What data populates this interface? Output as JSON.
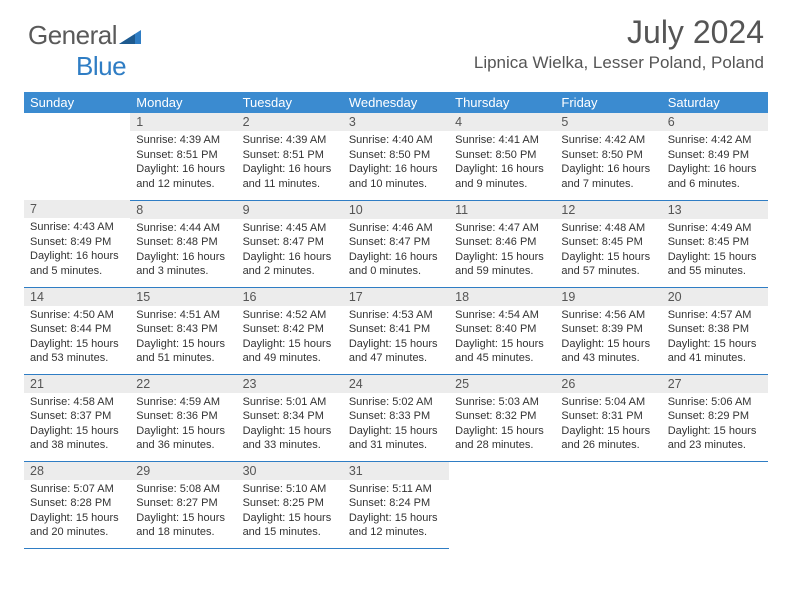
{
  "brand": {
    "word1": "General",
    "word2": "Blue"
  },
  "title": "July 2024",
  "location": "Lipnica Wielka, Lesser Poland, Poland",
  "colors": {
    "header_bg": "#3b8bd0",
    "border": "#2f7dc4",
    "daynum_bg": "#ececec",
    "text_primary": "#555555",
    "text_body": "#333333",
    "background": "#ffffff"
  },
  "weekdays": [
    "Sunday",
    "Monday",
    "Tuesday",
    "Wednesday",
    "Thursday",
    "Friday",
    "Saturday"
  ],
  "weeks": [
    [
      {
        "n": "",
        "lines": [
          "",
          "",
          "",
          ""
        ]
      },
      {
        "n": "1",
        "lines": [
          "Sunrise: 4:39 AM",
          "Sunset: 8:51 PM",
          "Daylight: 16 hours",
          "and 12 minutes."
        ]
      },
      {
        "n": "2",
        "lines": [
          "Sunrise: 4:39 AM",
          "Sunset: 8:51 PM",
          "Daylight: 16 hours",
          "and 11 minutes."
        ]
      },
      {
        "n": "3",
        "lines": [
          "Sunrise: 4:40 AM",
          "Sunset: 8:50 PM",
          "Daylight: 16 hours",
          "and 10 minutes."
        ]
      },
      {
        "n": "4",
        "lines": [
          "Sunrise: 4:41 AM",
          "Sunset: 8:50 PM",
          "Daylight: 16 hours",
          "and 9 minutes."
        ]
      },
      {
        "n": "5",
        "lines": [
          "Sunrise: 4:42 AM",
          "Sunset: 8:50 PM",
          "Daylight: 16 hours",
          "and 7 minutes."
        ]
      },
      {
        "n": "6",
        "lines": [
          "Sunrise: 4:42 AM",
          "Sunset: 8:49 PM",
          "Daylight: 16 hours",
          "and 6 minutes."
        ]
      }
    ],
    [
      {
        "n": "7",
        "lines": [
          "Sunrise: 4:43 AM",
          "Sunset: 8:49 PM",
          "Daylight: 16 hours",
          "and 5 minutes."
        ]
      },
      {
        "n": "8",
        "lines": [
          "Sunrise: 4:44 AM",
          "Sunset: 8:48 PM",
          "Daylight: 16 hours",
          "and 3 minutes."
        ]
      },
      {
        "n": "9",
        "lines": [
          "Sunrise: 4:45 AM",
          "Sunset: 8:47 PM",
          "Daylight: 16 hours",
          "and 2 minutes."
        ]
      },
      {
        "n": "10",
        "lines": [
          "Sunrise: 4:46 AM",
          "Sunset: 8:47 PM",
          "Daylight: 16 hours",
          "and 0 minutes."
        ]
      },
      {
        "n": "11",
        "lines": [
          "Sunrise: 4:47 AM",
          "Sunset: 8:46 PM",
          "Daylight: 15 hours",
          "and 59 minutes."
        ]
      },
      {
        "n": "12",
        "lines": [
          "Sunrise: 4:48 AM",
          "Sunset: 8:45 PM",
          "Daylight: 15 hours",
          "and 57 minutes."
        ]
      },
      {
        "n": "13",
        "lines": [
          "Sunrise: 4:49 AM",
          "Sunset: 8:45 PM",
          "Daylight: 15 hours",
          "and 55 minutes."
        ]
      }
    ],
    [
      {
        "n": "14",
        "lines": [
          "Sunrise: 4:50 AM",
          "Sunset: 8:44 PM",
          "Daylight: 15 hours",
          "and 53 minutes."
        ]
      },
      {
        "n": "15",
        "lines": [
          "Sunrise: 4:51 AM",
          "Sunset: 8:43 PM",
          "Daylight: 15 hours",
          "and 51 minutes."
        ]
      },
      {
        "n": "16",
        "lines": [
          "Sunrise: 4:52 AM",
          "Sunset: 8:42 PM",
          "Daylight: 15 hours",
          "and 49 minutes."
        ]
      },
      {
        "n": "17",
        "lines": [
          "Sunrise: 4:53 AM",
          "Sunset: 8:41 PM",
          "Daylight: 15 hours",
          "and 47 minutes."
        ]
      },
      {
        "n": "18",
        "lines": [
          "Sunrise: 4:54 AM",
          "Sunset: 8:40 PM",
          "Daylight: 15 hours",
          "and 45 minutes."
        ]
      },
      {
        "n": "19",
        "lines": [
          "Sunrise: 4:56 AM",
          "Sunset: 8:39 PM",
          "Daylight: 15 hours",
          "and 43 minutes."
        ]
      },
      {
        "n": "20",
        "lines": [
          "Sunrise: 4:57 AM",
          "Sunset: 8:38 PM",
          "Daylight: 15 hours",
          "and 41 minutes."
        ]
      }
    ],
    [
      {
        "n": "21",
        "lines": [
          "Sunrise: 4:58 AM",
          "Sunset: 8:37 PM",
          "Daylight: 15 hours",
          "and 38 minutes."
        ]
      },
      {
        "n": "22",
        "lines": [
          "Sunrise: 4:59 AM",
          "Sunset: 8:36 PM",
          "Daylight: 15 hours",
          "and 36 minutes."
        ]
      },
      {
        "n": "23",
        "lines": [
          "Sunrise: 5:01 AM",
          "Sunset: 8:34 PM",
          "Daylight: 15 hours",
          "and 33 minutes."
        ]
      },
      {
        "n": "24",
        "lines": [
          "Sunrise: 5:02 AM",
          "Sunset: 8:33 PM",
          "Daylight: 15 hours",
          "and 31 minutes."
        ]
      },
      {
        "n": "25",
        "lines": [
          "Sunrise: 5:03 AM",
          "Sunset: 8:32 PM",
          "Daylight: 15 hours",
          "and 28 minutes."
        ]
      },
      {
        "n": "26",
        "lines": [
          "Sunrise: 5:04 AM",
          "Sunset: 8:31 PM",
          "Daylight: 15 hours",
          "and 26 minutes."
        ]
      },
      {
        "n": "27",
        "lines": [
          "Sunrise: 5:06 AM",
          "Sunset: 8:29 PM",
          "Daylight: 15 hours",
          "and 23 minutes."
        ]
      }
    ],
    [
      {
        "n": "28",
        "lines": [
          "Sunrise: 5:07 AM",
          "Sunset: 8:28 PM",
          "Daylight: 15 hours",
          "and 20 minutes."
        ]
      },
      {
        "n": "29",
        "lines": [
          "Sunrise: 5:08 AM",
          "Sunset: 8:27 PM",
          "Daylight: 15 hours",
          "and 18 minutes."
        ]
      },
      {
        "n": "30",
        "lines": [
          "Sunrise: 5:10 AM",
          "Sunset: 8:25 PM",
          "Daylight: 15 hours",
          "and 15 minutes."
        ]
      },
      {
        "n": "31",
        "lines": [
          "Sunrise: 5:11 AM",
          "Sunset: 8:24 PM",
          "Daylight: 15 hours",
          "and 12 minutes."
        ]
      },
      {
        "n": "",
        "lines": [
          "",
          "",
          "",
          ""
        ]
      },
      {
        "n": "",
        "lines": [
          "",
          "",
          "",
          ""
        ]
      },
      {
        "n": "",
        "lines": [
          "",
          "",
          "",
          ""
        ]
      }
    ]
  ]
}
